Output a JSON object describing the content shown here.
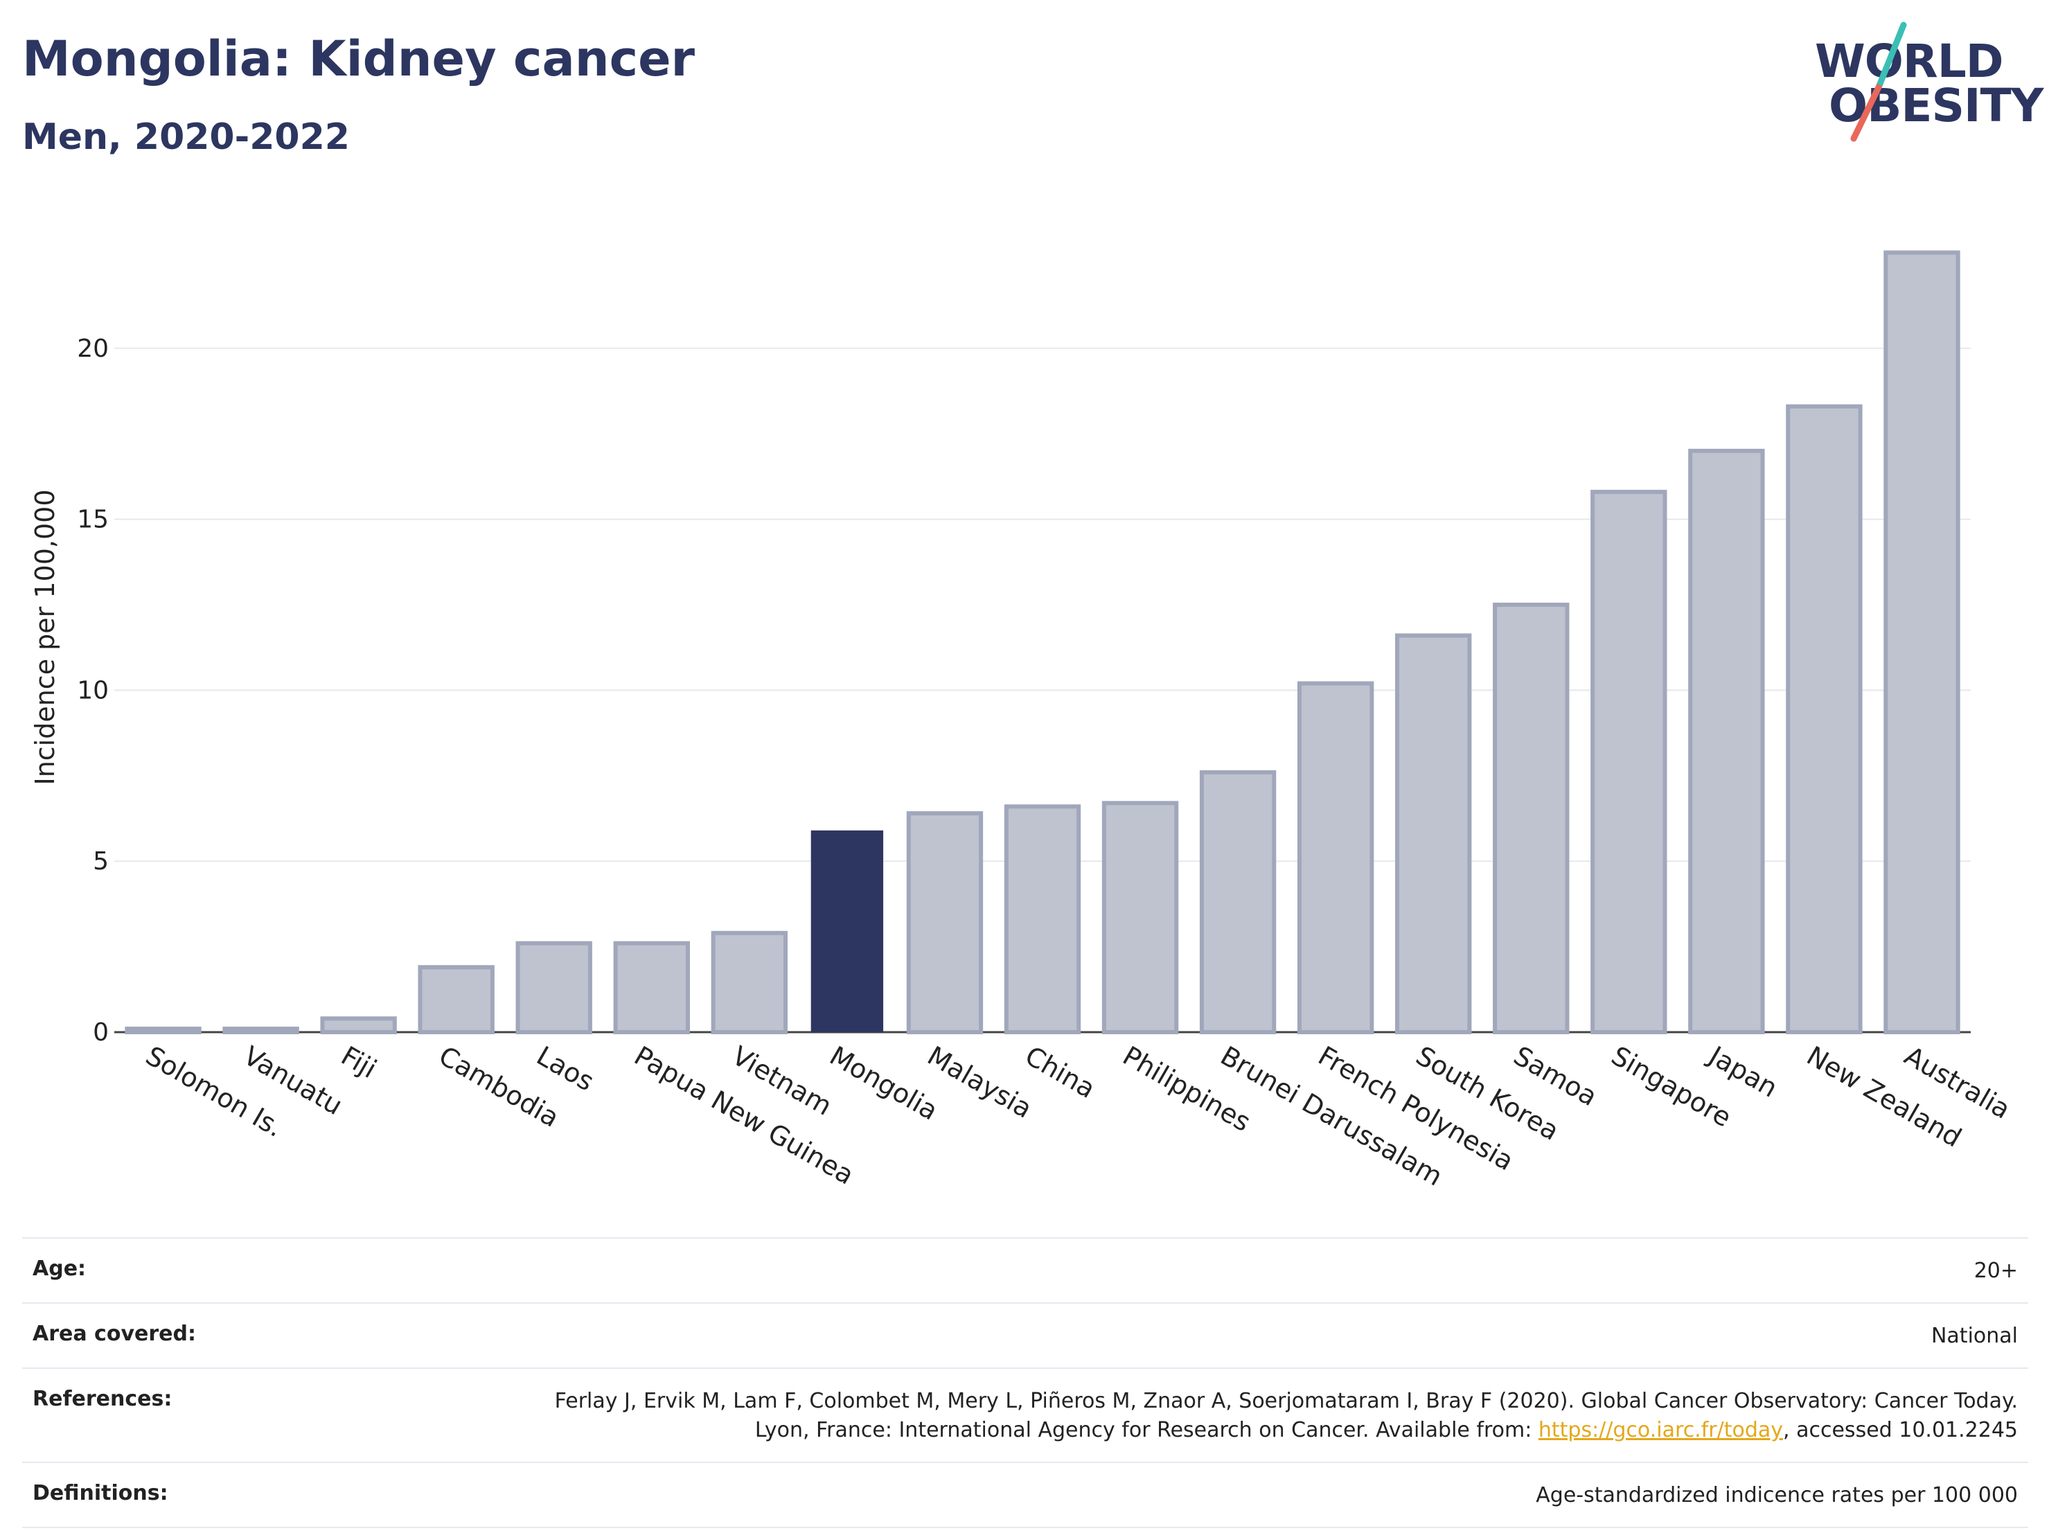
{
  "header": {
    "title": "Mongolia: Kidney cancer",
    "subtitle": "Men, 2020-2022"
  },
  "logo": {
    "line1": "WORLD",
    "line2": "OBESITY",
    "accent_colors": [
      "#3bbfb5",
      "#e8685a"
    ]
  },
  "colors": {
    "highlight_bar": "#2c3660",
    "other_bar_fill": "#bfc3cf",
    "other_bar_stroke": "#a1a7bb",
    "grid": "#e6e8ee",
    "zero_line": "#444444"
  },
  "chart_data": {
    "type": "bar",
    "ylabel": "Incidence per 100,000",
    "xlabel": "",
    "ylim": [
      0,
      23.5
    ],
    "yticks": [
      0,
      5,
      10,
      15,
      20
    ],
    "highlight": "Mongolia",
    "categories": [
      "Solomon Is.",
      "Vanuatu",
      "Fiji",
      "Cambodia",
      "Laos",
      "Papua New Guinea",
      "Vietnam",
      "Mongolia",
      "Malaysia",
      "China",
      "Philippines",
      "Brunei Darussalam",
      "French Polynesia",
      "South Korea",
      "Samoa",
      "Singapore",
      "Japan",
      "New Zealand",
      "Australia"
    ],
    "values": [
      0.1,
      0.1,
      0.4,
      1.9,
      2.6,
      2.6,
      2.9,
      5.9,
      6.4,
      6.6,
      6.7,
      7.6,
      10.2,
      11.6,
      12.5,
      15.8,
      17.0,
      18.3,
      22.8
    ],
    "grid": true
  },
  "meta": {
    "age_label": "Age:",
    "age_value": "20+",
    "area_label": "Area covered:",
    "area_value": "National",
    "references_label": "References:",
    "references_text_1": "Ferlay J, Ervik M, Lam F, Colombet M, Mery L, Piñeros M, Znaor A, Soerjomataram I, Bray F (2020). Global Cancer Observatory: Cancer Today. Lyon, France: International Agency for Research on Cancer. Available from: ",
    "references_link": "https://gco.iarc.fr/today",
    "references_text_2": ", accessed 10.01.2245",
    "definitions_label": "Definitions:",
    "definitions_value": "Age-standardized indicence rates per 100 000"
  }
}
